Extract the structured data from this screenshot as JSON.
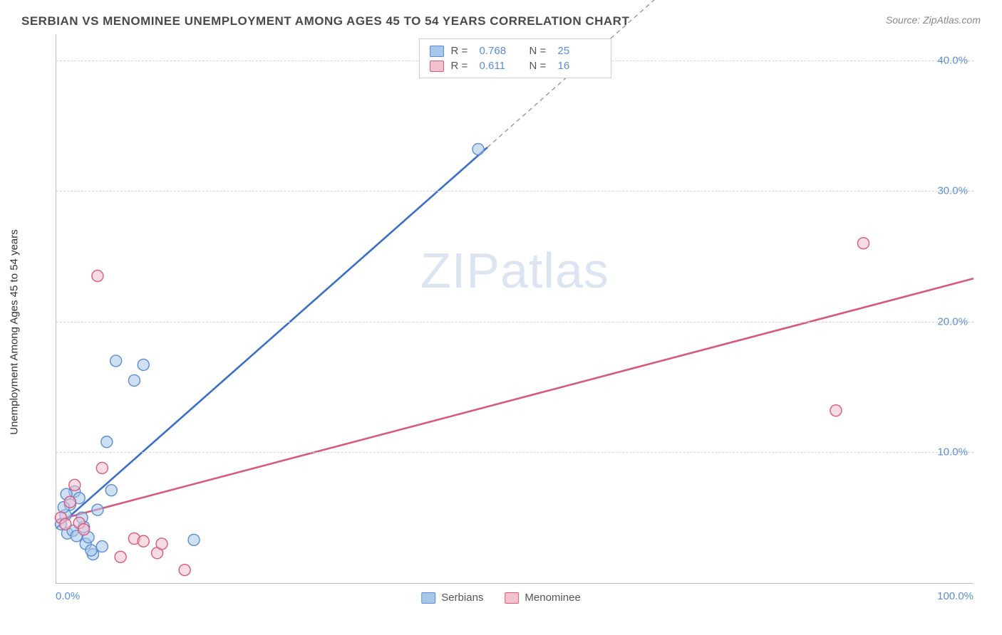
{
  "header": {
    "title": "SERBIAN VS MENOMINEE UNEMPLOYMENT AMONG AGES 45 TO 54 YEARS CORRELATION CHART",
    "source": "Source: ZipAtlas.com"
  },
  "axes": {
    "ylabel": "Unemployment Among Ages 45 to 54 years",
    "xlim": [
      0,
      100
    ],
    "ylim": [
      0,
      42
    ],
    "x_ticks": [
      {
        "value": 0,
        "label": "0.0%"
      },
      {
        "value": 100,
        "label": "100.0%"
      }
    ],
    "y_ticks": [
      {
        "value": 10,
        "label": "10.0%"
      },
      {
        "value": 20,
        "label": "20.0%"
      },
      {
        "value": 30,
        "label": "30.0%"
      },
      {
        "value": 40,
        "label": "40.0%"
      }
    ],
    "grid_color": "#d5d5d5",
    "axis_line_color": "#bbbbbb",
    "background_color": "#ffffff",
    "tick_label_color": "#5b8dd6",
    "tick_fontsize": 15
  },
  "watermark": {
    "text": "ZIPatlas"
  },
  "legend_top": {
    "rows": [
      {
        "swatch_fill": "#a8c6ea",
        "swatch_stroke": "#5b8dd6",
        "r_label": "R =",
        "r_value": "0.768",
        "n_label": "N =",
        "n_value": "25"
      },
      {
        "swatch_fill": "#f3c0ce",
        "swatch_stroke": "#d65a7a",
        "r_label": "R =",
        "r_value": "0.611",
        "n_label": "N =",
        "n_value": "16"
      }
    ]
  },
  "legend_bottom": {
    "items": [
      {
        "swatch_fill": "#a8c6ea",
        "swatch_stroke": "#5b8dd6",
        "label": "Serbians"
      },
      {
        "swatch_fill": "#f3c0ce",
        "swatch_stroke": "#d65a7a",
        "label": "Menominee"
      }
    ]
  },
  "series": [
    {
      "name": "Serbians",
      "point_fill": "#a8c6ea",
      "point_stroke": "#5b8dd6",
      "trend_color": "#3a6fc9",
      "trend_intercept": 4.2,
      "trend_slope": 0.62,
      "trend_solid_until_x": 47,
      "points": [
        [
          0.5,
          4.5
        ],
        [
          1.0,
          5.2
        ],
        [
          1.2,
          3.8
        ],
        [
          1.5,
          6.0
        ],
        [
          2.0,
          7.0
        ],
        [
          2.5,
          6.5
        ],
        [
          3.0,
          4.3
        ],
        [
          3.2,
          3.0
        ],
        [
          3.5,
          3.5
        ],
        [
          4.0,
          2.2
        ],
        [
          5.0,
          2.8
        ],
        [
          5.5,
          10.8
        ],
        [
          6.0,
          7.1
        ],
        [
          6.5,
          17.0
        ],
        [
          8.5,
          15.5
        ],
        [
          9.5,
          16.7
        ],
        [
          15.0,
          3.3
        ],
        [
          1.8,
          4.0
        ],
        [
          0.8,
          5.8
        ],
        [
          2.2,
          3.6
        ],
        [
          1.1,
          6.8
        ],
        [
          4.5,
          5.6
        ],
        [
          2.8,
          5.0
        ],
        [
          3.8,
          2.5
        ],
        [
          46.0,
          33.2
        ]
      ]
    },
    {
      "name": "Menominee",
      "point_fill": "#f3c0ce",
      "point_stroke": "#d65a7a",
      "trend_color": "#d65a7a",
      "trend_intercept": 4.8,
      "trend_slope": 0.185,
      "trend_solid_until_x": 100,
      "points": [
        [
          0.5,
          5.0
        ],
        [
          1.0,
          4.5
        ],
        [
          1.5,
          6.2
        ],
        [
          2.0,
          7.5
        ],
        [
          2.5,
          4.6
        ],
        [
          4.5,
          23.5
        ],
        [
          5.0,
          8.8
        ],
        [
          8.5,
          3.4
        ],
        [
          9.5,
          3.2
        ],
        [
          11.0,
          2.3
        ],
        [
          11.5,
          3.0
        ],
        [
          14.0,
          1.0
        ],
        [
          7.0,
          2.0
        ],
        [
          85.0,
          13.2
        ],
        [
          88.0,
          26.0
        ],
        [
          3.0,
          4.1
        ]
      ]
    }
  ],
  "plot_style": {
    "type": "scatter",
    "point_radius": 8,
    "point_opacity": 0.55
  }
}
